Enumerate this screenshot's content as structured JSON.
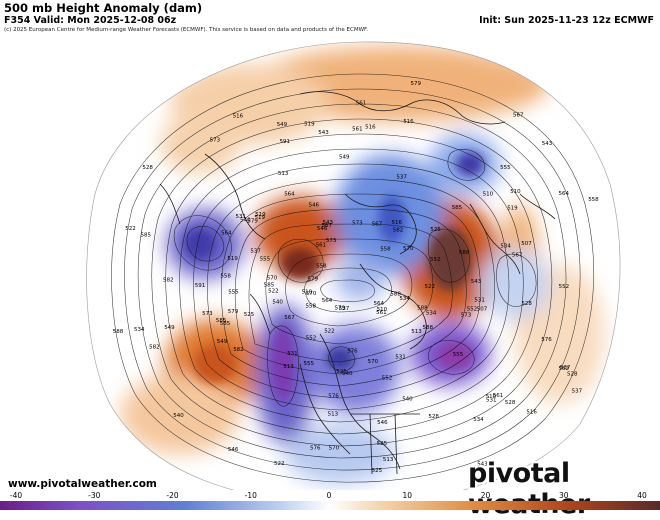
{
  "header": {
    "title": "500 mb Height Anomaly (dam)",
    "valid": "F354 Valid: Mon 2025-12-08 06z",
    "init": "Init: Sun 2025-11-23 12z ECMWF",
    "copyright": "(c) 2025 European Centre for Medium-range Weather Forecasts (ECMWF). This service is based on data and products of the ECMWF."
  },
  "footer": {
    "url": "www.pivotalweather.com",
    "brand": "pivotal weather"
  },
  "colorbar": {
    "ticks": [
      "-40",
      "-30",
      "-20",
      "-10",
      "0",
      "10",
      "20",
      "30",
      "40"
    ],
    "colors": {
      "neg_extreme": "#6a1f8a",
      "neg_strong": "#7d4fc9",
      "neg_mid": "#5f7fd6",
      "neg_weak": "#b9cdf0",
      "neutral": "#ffffff",
      "pos_weak": "#f5d2a8",
      "pos_mid": "#e28a3c",
      "pos_strong": "#b3441a",
      "pos_extreme": "#5a2a2a"
    }
  },
  "map": {
    "contour_labels": [
      "591",
      "588",
      "585",
      "582",
      "579",
      "576",
      "573",
      "570",
      "567",
      "564",
      "561",
      "558",
      "555",
      "552",
      "549",
      "546",
      "543",
      "540",
      "537",
      "534",
      "531",
      "528",
      "525",
      "522",
      "519",
      "516",
      "513",
      "510",
      "507",
      "591",
      "588",
      "585",
      "582",
      "579",
      "576",
      "573",
      "570",
      "567",
      "564",
      "561",
      "558",
      "555",
      "552",
      "549",
      "546",
      "543",
      "540",
      "537",
      "534",
      "531",
      "528",
      "525",
      "522",
      "519",
      "516",
      "513",
      "510",
      "588",
      "585",
      "582",
      "579",
      "576",
      "573",
      "570",
      "567",
      "564",
      "561",
      "558",
      "555",
      "552",
      "549",
      "546",
      "543",
      "540",
      "537",
      "534",
      "531",
      "528",
      "525",
      "522",
      "519",
      "516",
      "513",
      "510",
      "588",
      "585",
      "582",
      "579",
      "576",
      "573",
      "570",
      "567",
      "564",
      "561",
      "558",
      "555",
      "552",
      "549",
      "546",
      "543",
      "540",
      "537",
      "534",
      "531",
      "528",
      "525",
      "522",
      "519",
      "516",
      "513",
      "510",
      "588",
      "585",
      "582",
      "579",
      "576",
      "573",
      "570",
      "567",
      "564",
      "561",
      "558",
      "555",
      "552",
      "549",
      "546",
      "543",
      "540",
      "537",
      "534",
      "531",
      "528",
      "525",
      "522",
      "519",
      "516",
      "513",
      "510",
      "507"
    ]
  }
}
